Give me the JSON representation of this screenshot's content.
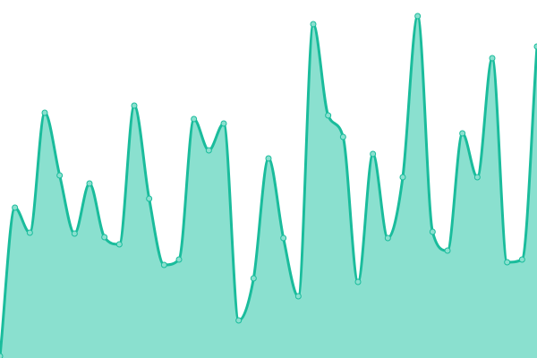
{
  "chart_data": {
    "type": "area",
    "title": "",
    "xlabel": "",
    "ylabel": "",
    "grid": false,
    "axes_visible": false,
    "ylim": [
      0,
      400
    ],
    "x": [
      0,
      1,
      2,
      3,
      4,
      5,
      6,
      7,
      8,
      9,
      10,
      11,
      12,
      13,
      14,
      15,
      16,
      17,
      18,
      19,
      20,
      21,
      22,
      23,
      24,
      25,
      26,
      27,
      28,
      29,
      30,
      31,
      32,
      33,
      34,
      35,
      36
    ],
    "values": [
      2,
      168,
      140,
      274,
      204,
      139,
      195,
      135,
      127,
      282,
      178,
      104,
      110,
      267,
      232,
      262,
      42,
      89,
      223,
      134,
      69,
      373,
      271,
      247,
      85,
      228,
      134,
      202,
      382,
      141,
      120,
      251,
      202,
      335,
      107,
      110,
      348
    ],
    "colors": {
      "line": "#1abc9c",
      "fill": "#8ae0cf",
      "point_fill": "#8ae0cf"
    }
  }
}
